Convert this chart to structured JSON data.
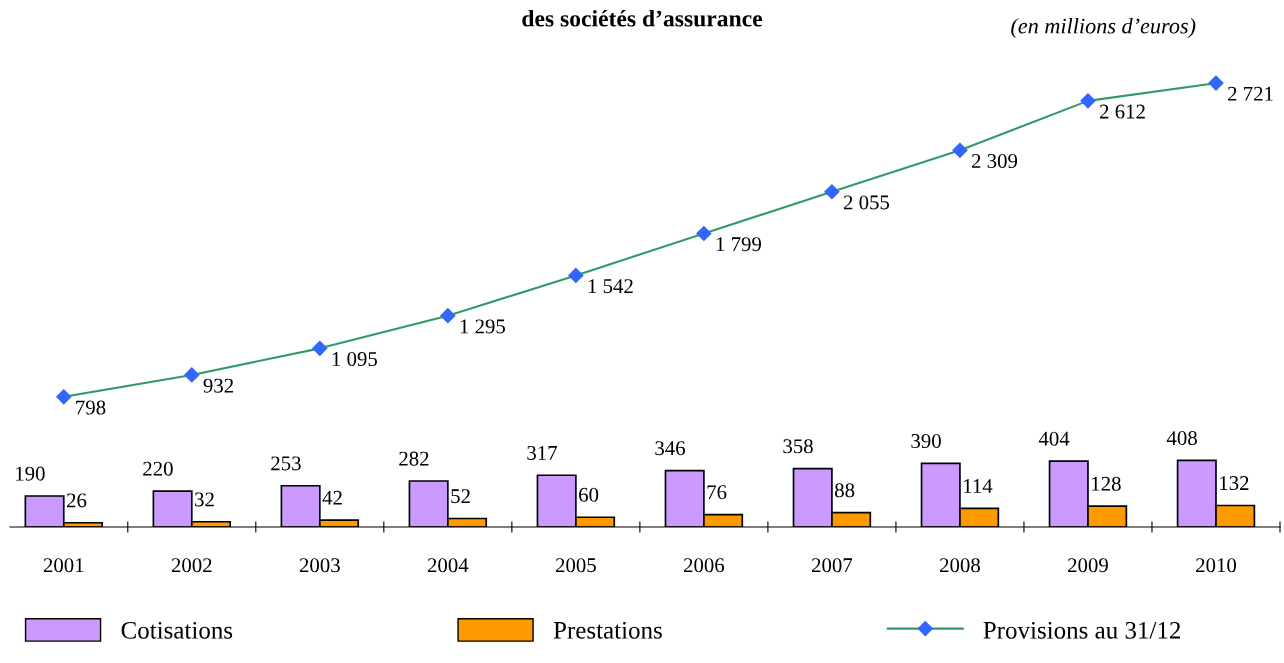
{
  "chart_data": {
    "type": "bar",
    "title": "des sociétés d’assurance",
    "subtitle": "(en millions d’euros)",
    "categories": [
      "2001",
      "2002",
      "2003",
      "2004",
      "2005",
      "2006",
      "2007",
      "2008",
      "2009",
      "2010"
    ],
    "series": [
      {
        "name": "Cotisations",
        "color": "#cc99ff",
        "values": [
          190,
          220,
          253,
          282,
          317,
          346,
          358,
          390,
          404,
          408
        ],
        "value_labels": [
          "190",
          "220",
          "253",
          "282",
          "317",
          "346",
          "358",
          "390",
          "404",
          "408"
        ]
      },
      {
        "name": "Prestations",
        "color": "#ff9900",
        "values": [
          26,
          32,
          42,
          52,
          60,
          76,
          88,
          114,
          128,
          132
        ],
        "value_labels": [
          "26",
          "32",
          "42",
          "52",
          "60",
          "76",
          "88",
          "114",
          "128",
          "132"
        ]
      },
      {
        "name": "Provisions au 31/12",
        "type": "line",
        "color": "#339966",
        "marker": "diamond",
        "values": [
          798,
          932,
          1095,
          1295,
          1542,
          1799,
          2055,
          2309,
          2612,
          2721
        ],
        "value_labels": [
          "798",
          "932",
          "1 095",
          "1 295",
          "1 542",
          "1 799",
          "2 055",
          "2 309",
          "2 612",
          "2 721"
        ]
      }
    ],
    "legend": "bottom",
    "grid": false
  }
}
